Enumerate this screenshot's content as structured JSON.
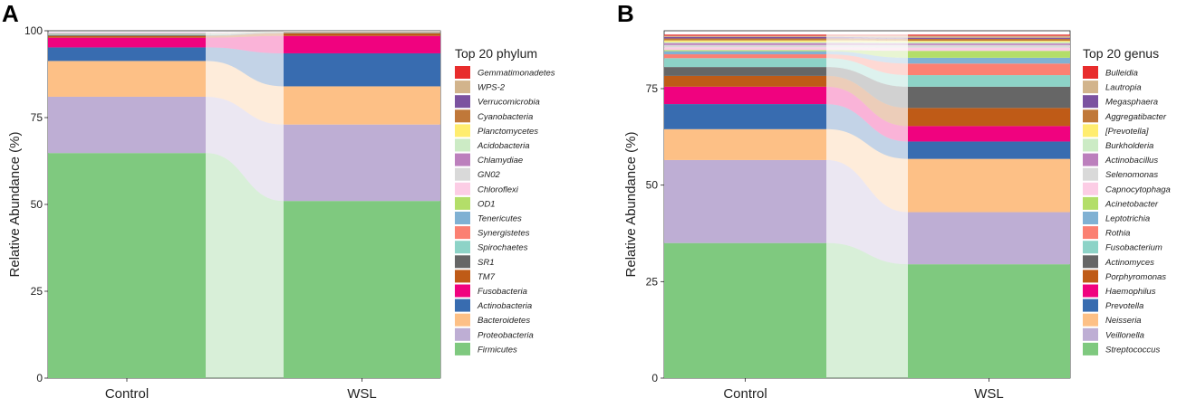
{
  "chart_data": [
    {
      "panel": "A",
      "type": "area",
      "subtype": "stacked-bar-alluvial",
      "ylabel": "Relative Abundance (%)",
      "ylim": [
        0,
        100
      ],
      "yticks": [
        "0",
        "25",
        "50",
        "75",
        "100"
      ],
      "categories": [
        "Control",
        "WSL"
      ],
      "legend_title": "Top 20 phylum",
      "series": [
        {
          "name": "Firmicutes",
          "color": "#7fc97f",
          "values": [
            64.8,
            51.0
          ]
        },
        {
          "name": "Proteobacteria",
          "color": "#beaed4",
          "values": [
            16.2,
            22.0
          ]
        },
        {
          "name": "Bacteroidetes",
          "color": "#fdc086",
          "values": [
            10.3,
            11.0
          ]
        },
        {
          "name": "Actinobacteria",
          "color": "#386cb0",
          "values": [
            3.9,
            9.5
          ]
        },
        {
          "name": "Fusobacteria",
          "color": "#f0027f",
          "values": [
            2.8,
            5.0
          ]
        },
        {
          "name": "TM7",
          "color": "#bf5b17",
          "values": [
            0.5,
            0.8
          ]
        },
        {
          "name": "SR1",
          "color": "#666666",
          "values": [
            0.2,
            0.1
          ]
        },
        {
          "name": "Spirochaetes",
          "color": "#8dd3c7",
          "values": [
            0.2,
            0.1
          ]
        },
        {
          "name": "Synergistetes",
          "color": "#fb8072",
          "values": [
            0.1,
            0.1
          ]
        },
        {
          "name": "Tenericutes",
          "color": "#80b1d3",
          "values": [
            0.1,
            0.1
          ]
        },
        {
          "name": "OD1",
          "color": "#b3de69",
          "values": [
            0.1,
            0.1
          ]
        },
        {
          "name": "Chloroflexi",
          "color": "#fccde5",
          "values": [
            0.1,
            0.1
          ]
        },
        {
          "name": "GN02",
          "color": "#d9d9d9",
          "values": [
            0.1,
            0.1
          ]
        },
        {
          "name": "Chlamydiae",
          "color": "#bc80bd",
          "values": [
            0.1,
            0.0
          ]
        },
        {
          "name": "Acidobacteria",
          "color": "#ccebc5",
          "values": [
            0.0,
            0.0
          ]
        },
        {
          "name": "Planctomycetes",
          "color": "#ffed6f",
          "values": [
            0.0,
            0.0
          ]
        },
        {
          "name": "Cyanobacteria",
          "color": "#c07839",
          "values": [
            0.0,
            0.0
          ]
        },
        {
          "name": "Verrucomicrobia",
          "color": "#7b52a0",
          "values": [
            0.0,
            0.0
          ]
        },
        {
          "name": "WPS-2",
          "color": "#d2b48c",
          "values": [
            0.0,
            0.0
          ]
        },
        {
          "name": "Gemmatimonadetes",
          "color": "#e82c2c",
          "values": [
            0.0,
            0.0
          ]
        }
      ]
    },
    {
      "panel": "B",
      "type": "area",
      "subtype": "stacked-bar-alluvial",
      "ylabel": "Relative Abundance (%)",
      "ylim": [
        0,
        90
      ],
      "yticks": [
        "0",
        "25",
        "50",
        "75"
      ],
      "categories": [
        "Control",
        "WSL"
      ],
      "legend_title": "Top 20 genus",
      "series": [
        {
          "name": "Streptococcus",
          "color": "#7fc97f",
          "values": [
            35.0,
            29.5
          ]
        },
        {
          "name": "Veillonella",
          "color": "#beaed4",
          "values": [
            21.5,
            13.5
          ]
        },
        {
          "name": "Neisseria",
          "color": "#fdc086",
          "values": [
            8.0,
            13.8
          ]
        },
        {
          "name": "Prevotella",
          "color": "#386cb0",
          "values": [
            6.5,
            4.5
          ]
        },
        {
          "name": "Haemophilus",
          "color": "#f0027f",
          "values": [
            4.5,
            4.0
          ]
        },
        {
          "name": "Porphyromonas",
          "color": "#bf5b17",
          "values": [
            2.8,
            4.7
          ]
        },
        {
          "name": "Actinomyces",
          "color": "#666666",
          "values": [
            2.3,
            5.5
          ]
        },
        {
          "name": "Fusobacterium",
          "color": "#8dd3c7",
          "values": [
            2.3,
            3.0
          ]
        },
        {
          "name": "Rothia",
          "color": "#fb8072",
          "values": [
            1.0,
            3.0
          ]
        },
        {
          "name": "Leptotrichia",
          "color": "#80b1d3",
          "values": [
            0.8,
            1.5
          ]
        },
        {
          "name": "Acinetobacter",
          "color": "#b3de69",
          "values": [
            0.3,
            1.8
          ]
        },
        {
          "name": "Capnocytophaga",
          "color": "#fccde5",
          "values": [
            0.7,
            0.8
          ]
        },
        {
          "name": "Selenomonas",
          "color": "#d9d9d9",
          "values": [
            0.6,
            0.7
          ]
        },
        {
          "name": "Actinobacillus",
          "color": "#bc80bd",
          "values": [
            0.5,
            0.4
          ]
        },
        {
          "name": "Burkholderia",
          "color": "#ccebc5",
          "values": [
            0.3,
            0.4
          ]
        },
        {
          "name": "[Prevotella]",
          "color": "#ffed6f",
          "values": [
            0.4,
            0.3
          ]
        },
        {
          "name": "Aggregatibacter",
          "color": "#c07839",
          "values": [
            0.5,
            0.5
          ]
        },
        {
          "name": "Megasphaera",
          "color": "#7b52a0",
          "values": [
            0.4,
            0.3
          ]
        },
        {
          "name": "Lautropia",
          "color": "#d2b48c",
          "values": [
            0.3,
            0.5
          ]
        },
        {
          "name": "Bulleidia",
          "color": "#e82c2c",
          "values": [
            0.3,
            0.3
          ]
        }
      ]
    }
  ]
}
